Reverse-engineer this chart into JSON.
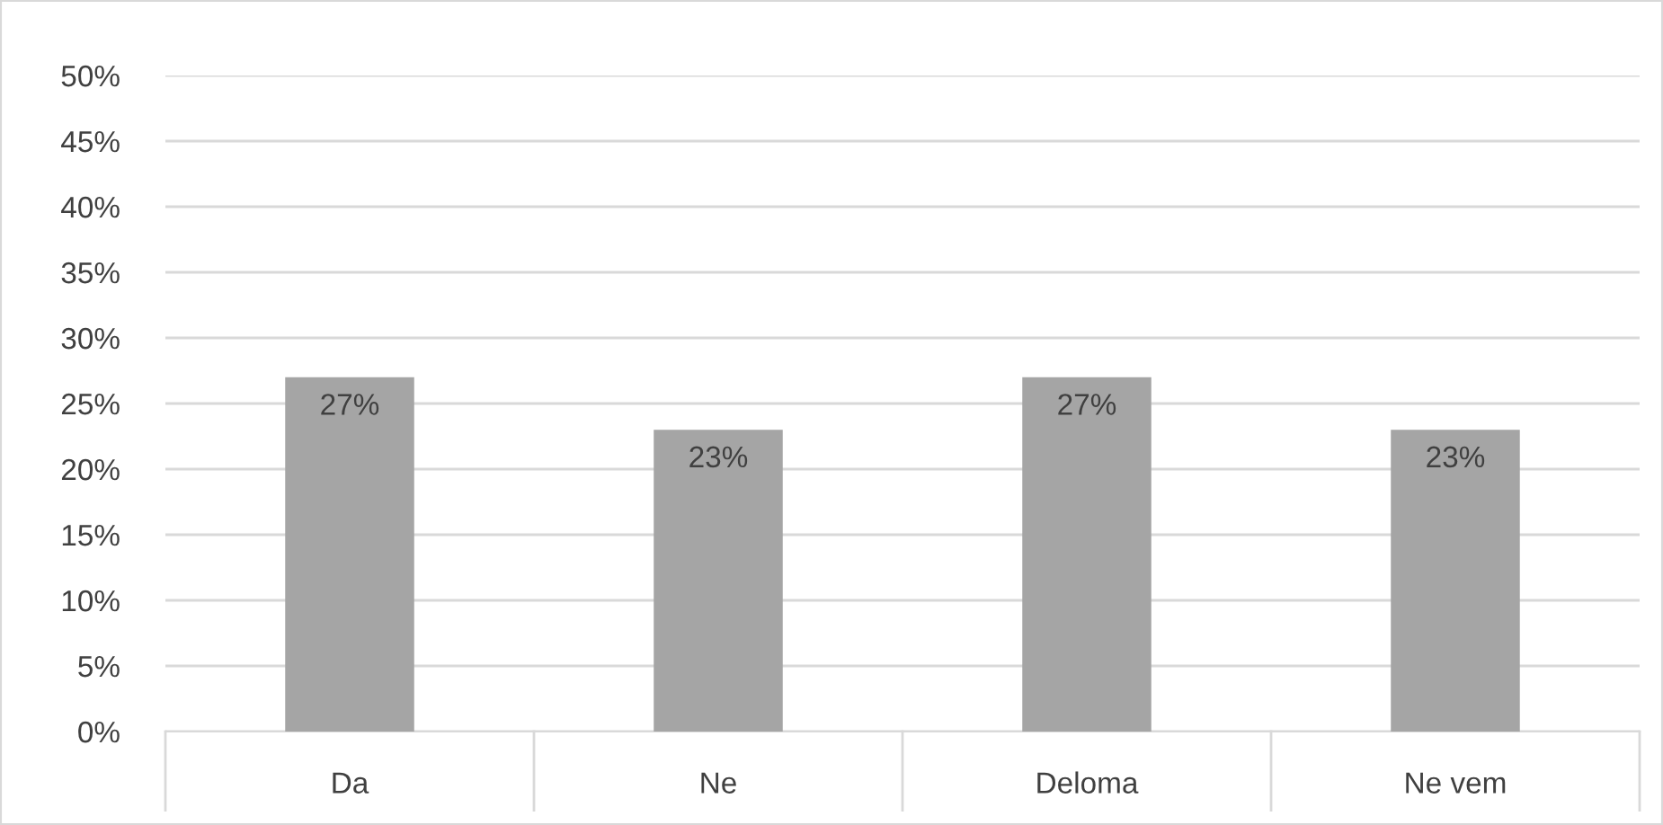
{
  "chart_data": {
    "type": "bar",
    "categories": [
      "Da",
      "Ne",
      "Deloma",
      "Ne vem"
    ],
    "values": [
      27,
      23,
      27,
      23
    ],
    "value_labels": [
      "27%",
      "23%",
      "27%",
      "23%"
    ],
    "color": "#a5a5a5",
    "ylim": [
      0,
      50
    ],
    "yticks": [
      {
        "value": 0,
        "label": "0%"
      },
      {
        "value": 5,
        "label": "5%"
      },
      {
        "value": 10,
        "label": "10%"
      },
      {
        "value": 15,
        "label": "15%"
      },
      {
        "value": 20,
        "label": "20%"
      },
      {
        "value": 25,
        "label": "25%"
      },
      {
        "value": 30,
        "label": "30%"
      },
      {
        "value": 35,
        "label": "35%"
      },
      {
        "value": 40,
        "label": "40%"
      },
      {
        "value": 45,
        "label": "45%"
      },
      {
        "value": 50,
        "label": "50%"
      }
    ],
    "grid": "y"
  }
}
